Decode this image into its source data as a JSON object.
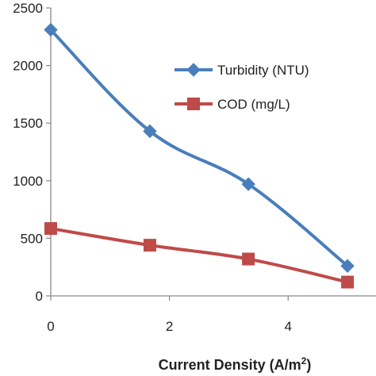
{
  "chart_data": {
    "type": "line",
    "x": [
      0,
      1.67,
      3.33,
      5
    ],
    "series": [
      {
        "name": "Turbidity (NTU)",
        "values": [
          2310,
          1430,
          970,
          260
        ],
        "color": "#4a7ebb",
        "marker": "diamond"
      },
      {
        "name": "COD (mg/L)",
        "values": [
          585,
          440,
          320,
          120
        ],
        "color": "#be4b48",
        "marker": "square"
      }
    ],
    "title": "",
    "xlabel": "Current Density (A/m",
    "xlabel_superscript": "2",
    "xlabel_suffix": ")",
    "ylabel": "",
    "xlim": [
      0,
      5.4
    ],
    "ylim": [
      0,
      2500
    ],
    "xticks": [
      "0",
      "2",
      "4"
    ],
    "yticks": [
      "0",
      "500",
      "1000",
      "1500",
      "2000",
      "2500"
    ],
    "grid": false,
    "legend_position": "top-right"
  }
}
